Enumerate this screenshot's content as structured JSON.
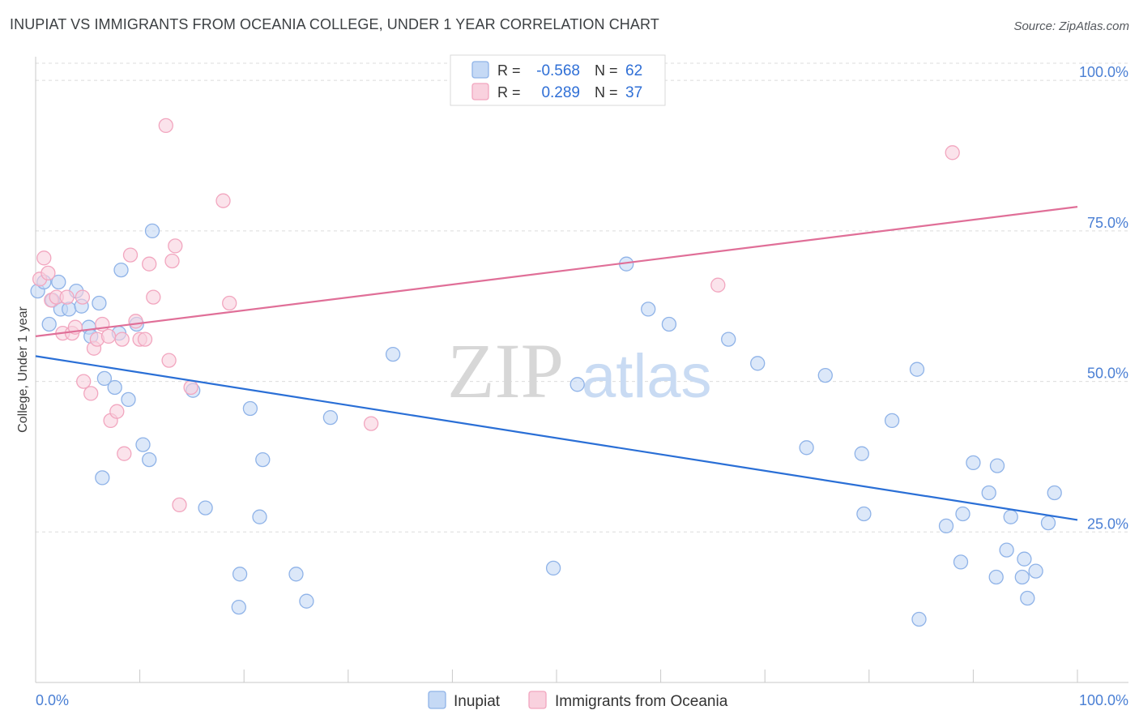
{
  "title": "INUPIAT VS IMMIGRANTS FROM OCEANIA COLLEGE, UNDER 1 YEAR CORRELATION CHART",
  "source": "Source: ZipAtlas.com",
  "watermark": {
    "zip": "ZIP",
    "atlas": "atlas"
  },
  "legend": {
    "rows": [
      {
        "r_label": "R =",
        "r_value": "-0.568",
        "n_label": "N =",
        "n_value": "62"
      },
      {
        "r_label": "R =",
        "r_value": "0.289",
        "n_label": "N =",
        "n_value": "37"
      }
    ]
  },
  "chart_data": {
    "type": "scatter",
    "title": "INUPIAT VS IMMIGRANTS FROM OCEANIA COLLEGE, UNDER 1 YEAR CORRELATION CHART",
    "xlabel": "",
    "ylabel": "College, Under 1 year",
    "xlim": [
      0,
      100
    ],
    "ylim": [
      0,
      105
    ],
    "x_tick_labels": [
      "0.0%",
      "100.0%"
    ],
    "y_tick_values": [
      25,
      50,
      75,
      100
    ],
    "y_tick_labels": [
      "25.0%",
      "50.0%",
      "75.0%",
      "100.0%"
    ],
    "grid": true,
    "legend_position": "bottom",
    "series": [
      {
        "name": "Inupiat",
        "color": "#8fb3e8",
        "fill": "#c5d9f5",
        "line_color": "#2a6fd6",
        "trend": {
          "x": [
            0,
            100
          ],
          "y": [
            54.2,
            27.0
          ]
        },
        "points": [
          [
            0.2,
            65.0
          ],
          [
            0.8,
            66.5
          ],
          [
            1.3,
            59.5
          ],
          [
            1.6,
            63.5
          ],
          [
            2.2,
            66.5
          ],
          [
            2.4,
            62.0
          ],
          [
            3.2,
            62.0
          ],
          [
            3.9,
            65.0
          ],
          [
            4.4,
            62.5
          ],
          [
            5.1,
            59.0
          ],
          [
            5.3,
            57.5
          ],
          [
            6.1,
            63.0
          ],
          [
            6.4,
            34.0
          ],
          [
            6.6,
            50.5
          ],
          [
            7.6,
            49.0
          ],
          [
            8.0,
            58.0
          ],
          [
            8.2,
            68.5
          ],
          [
            8.9,
            47.0
          ],
          [
            9.7,
            59.5
          ],
          [
            10.3,
            39.5
          ],
          [
            10.9,
            37.0
          ],
          [
            11.2,
            75.0
          ],
          [
            15.1,
            48.5
          ],
          [
            16.3,
            29.0
          ],
          [
            19.5,
            12.5
          ],
          [
            19.6,
            18.0
          ],
          [
            20.6,
            45.5
          ],
          [
            21.5,
            27.5
          ],
          [
            21.8,
            37.0
          ],
          [
            25.0,
            18.0
          ],
          [
            26.0,
            13.5
          ],
          [
            28.3,
            44.0
          ],
          [
            34.3,
            54.5
          ],
          [
            49.7,
            19.0
          ],
          [
            52.0,
            49.5
          ],
          [
            56.7,
            69.5
          ],
          [
            58.8,
            62.0
          ],
          [
            60.8,
            59.5
          ],
          [
            66.5,
            57.0
          ],
          [
            69.3,
            53.0
          ],
          [
            74.0,
            39.0
          ],
          [
            75.8,
            51.0
          ],
          [
            79.3,
            38.0
          ],
          [
            79.5,
            28.0
          ],
          [
            82.2,
            43.5
          ],
          [
            84.6,
            52.0
          ],
          [
            84.8,
            10.5
          ],
          [
            87.4,
            26.0
          ],
          [
            88.8,
            20.0
          ],
          [
            89.0,
            28.0
          ],
          [
            90.0,
            36.5
          ],
          [
            91.5,
            31.5
          ],
          [
            92.2,
            17.5
          ],
          [
            92.3,
            36.0
          ],
          [
            93.2,
            22.0
          ],
          [
            93.6,
            27.5
          ],
          [
            94.7,
            17.5
          ],
          [
            94.9,
            20.5
          ],
          [
            95.2,
            14.0
          ],
          [
            96.0,
            18.5
          ],
          [
            97.2,
            26.5
          ],
          [
            97.8,
            31.5
          ]
        ]
      },
      {
        "name": "Immigrants from Oceania",
        "color": "#f2a6bf",
        "fill": "#f9d1de",
        "line_color": "#e06f98",
        "trend": {
          "x": [
            0,
            100
          ],
          "y": [
            57.5,
            79.0
          ]
        },
        "points": [
          [
            0.4,
            67.0
          ],
          [
            0.8,
            70.5
          ],
          [
            1.2,
            68.0
          ],
          [
            1.5,
            63.5
          ],
          [
            2.0,
            64.0
          ],
          [
            2.6,
            58.0
          ],
          [
            3.0,
            64.0
          ],
          [
            3.5,
            58.0
          ],
          [
            3.8,
            59.0
          ],
          [
            4.5,
            64.0
          ],
          [
            4.6,
            50.0
          ],
          [
            5.3,
            48.0
          ],
          [
            5.6,
            55.5
          ],
          [
            5.9,
            57.0
          ],
          [
            6.4,
            59.5
          ],
          [
            7.0,
            57.5
          ],
          [
            7.2,
            43.5
          ],
          [
            7.8,
            45.0
          ],
          [
            8.3,
            57.0
          ],
          [
            8.5,
            38.0
          ],
          [
            9.1,
            71.0
          ],
          [
            9.6,
            60.0
          ],
          [
            10.0,
            57.0
          ],
          [
            10.5,
            57.0
          ],
          [
            10.9,
            69.5
          ],
          [
            11.3,
            64.0
          ],
          [
            12.5,
            92.5
          ],
          [
            12.8,
            53.5
          ],
          [
            13.1,
            70.0
          ],
          [
            13.4,
            72.5
          ],
          [
            13.8,
            29.5
          ],
          [
            14.9,
            49.0
          ],
          [
            18.0,
            80.0
          ],
          [
            18.6,
            63.0
          ],
          [
            32.2,
            43.0
          ],
          [
            65.5,
            66.0
          ],
          [
            88.0,
            88.0
          ]
        ]
      }
    ]
  }
}
